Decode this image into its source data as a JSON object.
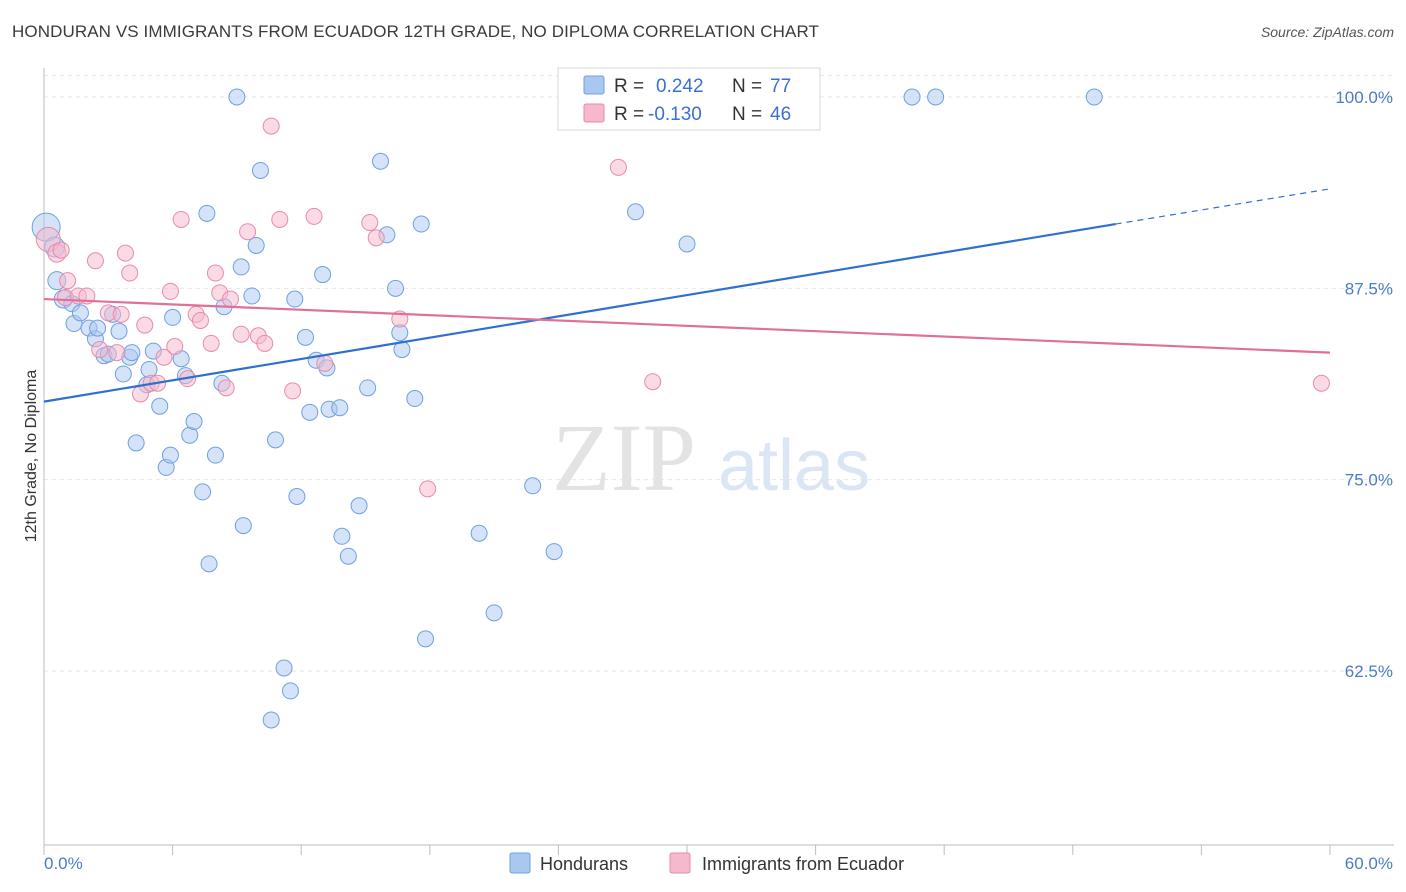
{
  "header": {
    "title": "HONDURAN VS IMMIGRANTS FROM ECUADOR 12TH GRADE, NO DIPLOMA CORRELATION CHART",
    "source": "Source: ZipAtlas.com"
  },
  "watermark": {
    "zip": "ZIP",
    "atlas": "atlas"
  },
  "legend": {
    "rows": [
      {
        "r_label": "R =",
        "r_value": "0.242",
        "n_label": "N =",
        "n_value": "77"
      },
      {
        "r_label": "R =",
        "r_value": "-0.130",
        "n_label": "N =",
        "n_value": "46"
      }
    ]
  },
  "bottom_legend": {
    "items": [
      "Hondurans",
      "Immigrants from Ecuador"
    ]
  },
  "colors": {
    "blue_fill": "#a9c8ef",
    "blue_stroke": "#6fa0e0",
    "blue_line": "#2f6fd0",
    "pink_fill": "#f5b8cc",
    "pink_stroke": "#e98aab",
    "pink_line": "#e0709a",
    "tick_label": "#4a7cc9",
    "grid": "#e6e6e6"
  },
  "chart_data": {
    "type": "scatter",
    "xlabel": "",
    "ylabel": "12th Grade, No Diploma",
    "xlim": [
      0,
      60
    ],
    "ylim": [
      50,
      102
    ],
    "x_tick_labels": {
      "min": "0.0%",
      "max": "60.0%"
    },
    "y_ticks": [
      {
        "value": 100,
        "label": "100.0%"
      },
      {
        "value": 87.5,
        "label": "87.5%"
      },
      {
        "value": 75,
        "label": "75.0%"
      },
      {
        "value": 62.5,
        "label": "62.5%"
      }
    ],
    "grid": true,
    "legend_position": "top-center",
    "series": [
      {
        "name": "Hondurans",
        "trend": {
          "x0": 0,
          "y0": 80.1,
          "x1": 50,
          "y1": 91.7,
          "dash_to_x": 60,
          "dash_to_y": 94.0
        },
        "points": [
          [
            0.1,
            91.5,
            14
          ],
          [
            0.5,
            90.2,
            10
          ],
          [
            0.6,
            88.0,
            9
          ],
          [
            0.9,
            86.8,
            9
          ],
          [
            1.3,
            86.5,
            8
          ],
          [
            1.4,
            85.2,
            8
          ],
          [
            1.7,
            85.9,
            8
          ],
          [
            2.1,
            84.9,
            8
          ],
          [
            2.4,
            84.2,
            8
          ],
          [
            2.8,
            83.1,
            8
          ],
          [
            3.2,
            85.8,
            8
          ],
          [
            3.5,
            84.7,
            8
          ],
          [
            3.7,
            81.9,
            8
          ],
          [
            4.0,
            83.0,
            8
          ],
          [
            4.1,
            83.3,
            8
          ],
          [
            4.3,
            77.4,
            8
          ],
          [
            4.8,
            81.2,
            8
          ],
          [
            4.9,
            82.2,
            8
          ],
          [
            5.1,
            83.4,
            8
          ],
          [
            5.4,
            79.8,
            8
          ],
          [
            5.7,
            75.8,
            8
          ],
          [
            5.9,
            76.6,
            8
          ],
          [
            6.0,
            85.6,
            8
          ],
          [
            6.4,
            82.9,
            8
          ],
          [
            6.6,
            81.8,
            8
          ],
          [
            6.8,
            77.9,
            8
          ],
          [
            7.0,
            78.8,
            8
          ],
          [
            7.4,
            74.2,
            8
          ],
          [
            7.6,
            92.4,
            8
          ],
          [
            7.7,
            69.5,
            8
          ],
          [
            8.0,
            76.6,
            8
          ],
          [
            8.3,
            81.3,
            8
          ],
          [
            8.4,
            86.3,
            8
          ],
          [
            9.0,
            100.0,
            8
          ],
          [
            9.2,
            88.9,
            8
          ],
          [
            9.3,
            72.0,
            8
          ],
          [
            9.7,
            87.0,
            8
          ],
          [
            9.9,
            90.3,
            8
          ],
          [
            10.1,
            95.2,
            8
          ],
          [
            10.6,
            59.3,
            8
          ],
          [
            10.8,
            77.6,
            8
          ],
          [
            11.2,
            62.7,
            8
          ],
          [
            11.5,
            61.2,
            8
          ],
          [
            11.7,
            86.8,
            8
          ],
          [
            11.8,
            73.9,
            8
          ],
          [
            12.2,
            84.3,
            8
          ],
          [
            12.4,
            79.4,
            8
          ],
          [
            12.7,
            82.8,
            8
          ],
          [
            13.0,
            88.4,
            8
          ],
          [
            13.2,
            82.3,
            8
          ],
          [
            13.3,
            79.6,
            8
          ],
          [
            13.8,
            79.7,
            8
          ],
          [
            13.9,
            71.3,
            8
          ],
          [
            14.2,
            70.0,
            8
          ],
          [
            14.7,
            73.3,
            8
          ],
          [
            15.1,
            81.0,
            8
          ],
          [
            15.7,
            95.8,
            8
          ],
          [
            16.0,
            91.0,
            8
          ],
          [
            16.4,
            87.5,
            8
          ],
          [
            16.6,
            84.6,
            8
          ],
          [
            16.7,
            83.5,
            8
          ],
          [
            17.3,
            80.3,
            8
          ],
          [
            17.6,
            91.7,
            8
          ],
          [
            17.8,
            64.6,
            8
          ],
          [
            20.3,
            71.5,
            8
          ],
          [
            21.0,
            66.3,
            8
          ],
          [
            22.8,
            74.6,
            8
          ],
          [
            23.8,
            70.3,
            8
          ],
          [
            24.5,
            100.0,
            8
          ],
          [
            27.6,
            92.5,
            8
          ],
          [
            28.0,
            100.0,
            8
          ],
          [
            30.0,
            90.4,
            8
          ],
          [
            40.5,
            100.0,
            8
          ],
          [
            41.6,
            100.0,
            8
          ],
          [
            49.0,
            100.0,
            8
          ],
          [
            3.0,
            83.2,
            8
          ],
          [
            2.5,
            84.9,
            8
          ]
        ]
      },
      {
        "name": "Immigrants from Ecuador",
        "trend": {
          "x0": 0,
          "y0": 86.8,
          "x1": 60,
          "y1": 83.3
        },
        "points": [
          [
            0.2,
            90.7,
            12
          ],
          [
            0.6,
            89.8,
            9
          ],
          [
            0.8,
            90.0,
            8
          ],
          [
            1.0,
            86.9,
            8
          ],
          [
            1.1,
            88.0,
            8
          ],
          [
            1.6,
            87.0,
            8
          ],
          [
            2.0,
            87.0,
            8
          ],
          [
            2.4,
            89.3,
            8
          ],
          [
            2.6,
            83.5,
            8
          ],
          [
            3.0,
            85.9,
            8
          ],
          [
            3.4,
            83.3,
            8
          ],
          [
            3.6,
            85.8,
            8
          ],
          [
            3.8,
            89.8,
            8
          ],
          [
            4.0,
            88.5,
            8
          ],
          [
            4.5,
            80.6,
            8
          ],
          [
            4.7,
            85.1,
            8
          ],
          [
            5.0,
            81.3,
            8
          ],
          [
            5.3,
            81.3,
            8
          ],
          [
            5.6,
            83.0,
            8
          ],
          [
            5.9,
            87.3,
            8
          ],
          [
            6.1,
            83.7,
            8
          ],
          [
            6.4,
            92.0,
            8
          ],
          [
            6.7,
            81.6,
            8
          ],
          [
            7.1,
            85.8,
            8
          ],
          [
            7.3,
            85.4,
            8
          ],
          [
            7.8,
            83.9,
            8
          ],
          [
            8.0,
            88.5,
            8
          ],
          [
            8.2,
            87.2,
            8
          ],
          [
            8.5,
            81.0,
            8
          ],
          [
            8.7,
            86.8,
            8
          ],
          [
            9.2,
            84.5,
            8
          ],
          [
            9.5,
            91.2,
            8
          ],
          [
            10.0,
            84.4,
            8
          ],
          [
            10.3,
            83.9,
            8
          ],
          [
            10.6,
            98.1,
            8
          ],
          [
            11.0,
            92.0,
            8
          ],
          [
            11.6,
            80.8,
            8
          ],
          [
            12.6,
            92.2,
            8
          ],
          [
            13.1,
            82.6,
            8
          ],
          [
            15.2,
            91.8,
            8
          ],
          [
            15.5,
            90.8,
            8
          ],
          [
            16.6,
            85.5,
            8
          ],
          [
            17.9,
            74.4,
            8
          ],
          [
            26.8,
            95.4,
            8
          ],
          [
            28.4,
            81.4,
            8
          ],
          [
            59.6,
            81.3,
            8
          ]
        ]
      }
    ]
  }
}
